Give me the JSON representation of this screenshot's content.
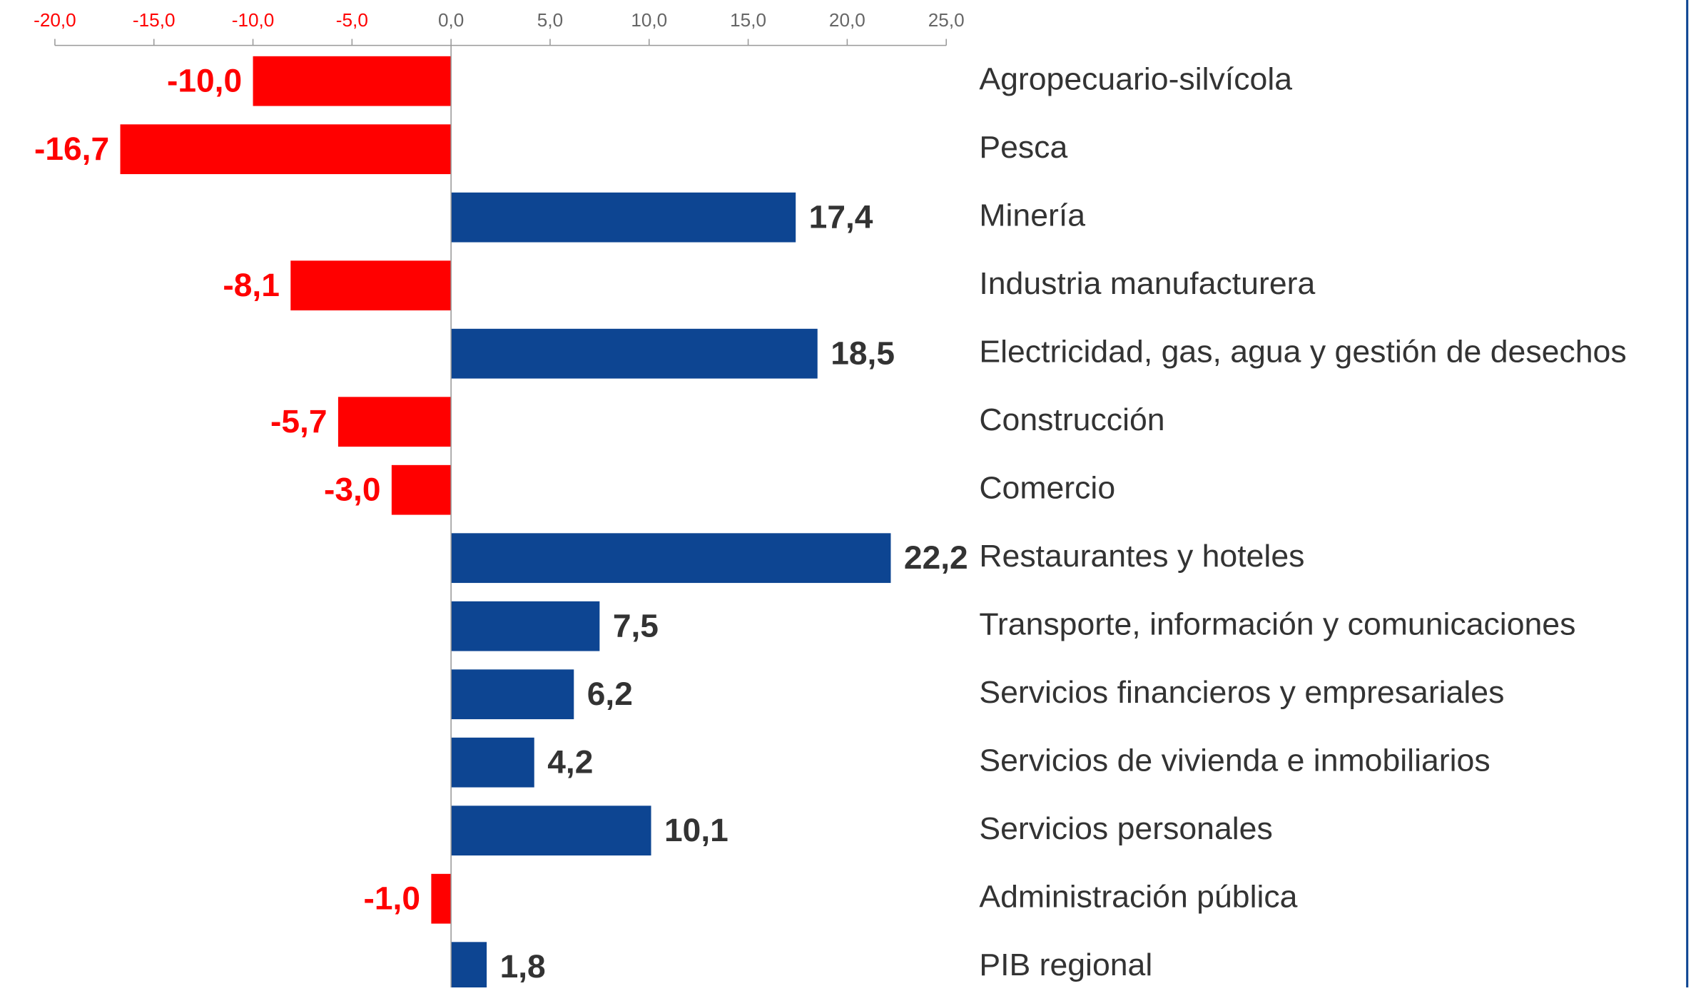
{
  "chart_data": {
    "type": "hbar",
    "categories": [
      "Agropecuario-silvícola",
      "Pesca",
      "Minería",
      "Industria manufacturera",
      "Electricidad, gas, agua y gestión de desechos",
      "Construcción",
      "Comercio",
      "Restaurantes y hoteles",
      "Transporte, información y comunicaciones",
      "Servicios financieros y empresariales",
      "Servicios de vivienda e inmobiliarios",
      "Servicios personales",
      "Administración pública",
      "PIB regional"
    ],
    "values": [
      -10.0,
      -16.7,
      17.4,
      -8.1,
      18.5,
      -5.7,
      -3.0,
      22.2,
      7.5,
      6.2,
      4.2,
      10.1,
      -1.0,
      1.8
    ],
    "value_labels": [
      "-10,0",
      "-16,7",
      "17,4",
      "-8,1",
      "18,5",
      "-5,7",
      "-3,0",
      "22,2",
      "7,5",
      "6,2",
      "4,2",
      "10,1",
      "-1,0",
      "1,8"
    ],
    "positive_color": "#0d4592",
    "negative_color": "#ff0000",
    "xlim": [
      -20,
      25
    ],
    "xticks": [
      {
        "value": -20,
        "label": "-20,0"
      },
      {
        "value": -15,
        "label": "-15,0"
      },
      {
        "value": -10,
        "label": "-10,0"
      },
      {
        "value": -5,
        "label": "-5,0"
      },
      {
        "value": 0,
        "label": "0,0"
      },
      {
        "value": 5,
        "label": "5,0"
      },
      {
        "value": 10,
        "label": "10,0"
      },
      {
        "value": 15,
        "label": "15,0"
      },
      {
        "value": 20,
        "label": "20,0"
      },
      {
        "value": 25,
        "label": "25,0"
      }
    ]
  }
}
